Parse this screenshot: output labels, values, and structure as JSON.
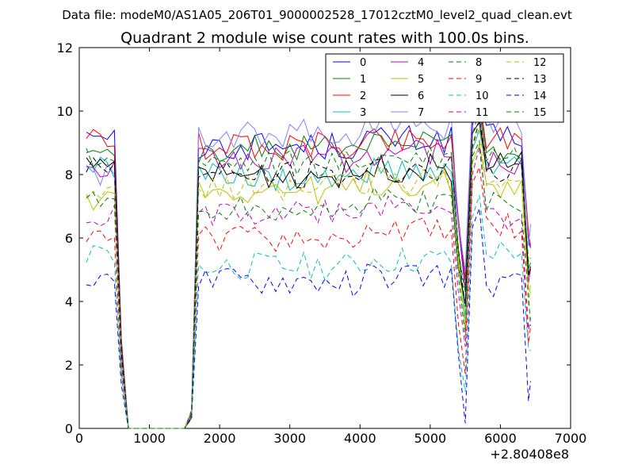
{
  "chart_data": {
    "type": "line",
    "suptitle": "Data file: modeM0/AS1A05_206T01_9000002528_17012cztM0_level2_quad_clean.evt",
    "title": "Quadrant 2 module wise count rates with 100.0s bins.",
    "xlabel": "",
    "ylabel": "",
    "x_offset_label": "+2.80408e8",
    "xlim": [
      0,
      7000
    ],
    "ylim": [
      0,
      12
    ],
    "xticks": [
      "0",
      "1000",
      "2000",
      "3000",
      "4000",
      "5000",
      "6000",
      "7000"
    ],
    "yticks": [
      "0",
      "2",
      "4",
      "6",
      "8",
      "10",
      "12"
    ],
    "legend_location": "upper right",
    "x": [
      100,
      200,
      300,
      400,
      500,
      600,
      700,
      800,
      900,
      1000,
      1100,
      1200,
      1300,
      1400,
      1500,
      1600,
      1700,
      1800,
      1900,
      2000,
      2100,
      2200,
      2300,
      2400,
      2500,
      2600,
      2700,
      2800,
      2900,
      3000,
      3100,
      3200,
      3300,
      3400,
      3500,
      3600,
      3700,
      3800,
      3900,
      4000,
      4100,
      4200,
      4300,
      4400,
      4500,
      4600,
      4700,
      4800,
      4900,
      5000,
      5100,
      5200,
      5300,
      5400,
      5500,
      5600,
      5700,
      5800,
      5900,
      6000,
      6100,
      6200,
      6300,
      6400,
      6430
    ],
    "series": [
      {
        "name": "0",
        "color": "#0000ff",
        "dash": "solid"
      },
      {
        "name": "1",
        "color": "#008000",
        "dash": "solid"
      },
      {
        "name": "2",
        "color": "#ff0000",
        "dash": "solid"
      },
      {
        "name": "3",
        "color": "#00bfbf",
        "dash": "solid"
      },
      {
        "name": "4",
        "color": "#bf00bf",
        "dash": "solid"
      },
      {
        "name": "5",
        "color": "#bfbf00",
        "dash": "solid"
      },
      {
        "name": "6",
        "color": "#000000",
        "dash": "solid"
      },
      {
        "name": "7",
        "color": "#8080ff",
        "dash": "solid"
      },
      {
        "name": "8",
        "color": "#008000",
        "dash": "dashed"
      },
      {
        "name": "9",
        "color": "#ff0000",
        "dash": "dashed"
      },
      {
        "name": "10",
        "color": "#00bfbf",
        "dash": "dashed"
      },
      {
        "name": "11",
        "color": "#bf00bf",
        "dash": "dashed"
      },
      {
        "name": "12",
        "color": "#bfbf00",
        "dash": "dashed"
      },
      {
        "name": "13",
        "color": "#000000",
        "dash": "dashed"
      },
      {
        "name": "14",
        "color": "#0000ff",
        "dash": "dashed"
      },
      {
        "name": "15",
        "color": "#008000",
        "dash": "dashed"
      }
    ],
    "series_levels": {
      "0": {
        "pre": 9.4,
        "mid": 8.9,
        "peak": 10.2,
        "post": 9.2
      },
      "1": {
        "pre": 8.7,
        "mid": 8.8,
        "peak": 10.4,
        "post": 8.7
      },
      "2": {
        "pre": 9.1,
        "mid": 8.9,
        "peak": 10.6,
        "post": 9.2
      },
      "3": {
        "pre": 8.2,
        "mid": 7.9,
        "peak": 9.5,
        "post": 8.3
      },
      "4": {
        "pre": 8.1,
        "mid": 8.5,
        "peak": 10.3,
        "post": 8.4
      },
      "5": {
        "pre": 7.2,
        "mid": 7.5,
        "peak": 9.0,
        "post": 7.6
      },
      "6": {
        "pre": 8.3,
        "mid": 8.0,
        "peak": 9.7,
        "post": 8.4
      },
      "7": {
        "pre": 8.0,
        "mid": 9.3,
        "peak": 10.8,
        "post": 9.7
      },
      "8": {
        "pre": 8.5,
        "mid": 8.3,
        "peak": 10.0,
        "post": 8.6
      },
      "9": {
        "pre": 6.2,
        "mid": 6.0,
        "peak": 8.2,
        "post": 6.4
      },
      "10": {
        "pre": 5.5,
        "mid": 5.1,
        "peak": 7.3,
        "post": 5.6
      },
      "11": {
        "pre": 6.7,
        "mid": 6.8,
        "peak": 8.8,
        "post": 6.6
      },
      "12": {
        "pre": 7.4,
        "mid": 7.6,
        "peak": 9.4,
        "post": 7.7
      },
      "13": {
        "pre": 8.2,
        "mid": 8.0,
        "peak": 9.6,
        "post": 8.1
      },
      "14": {
        "pre": 4.6,
        "mid": 4.6,
        "peak": 6.8,
        "post": 4.5
      },
      "15": {
        "pre": 7.3,
        "mid": 7.0,
        "peak": 9.2,
        "post": 7.2
      }
    }
  }
}
